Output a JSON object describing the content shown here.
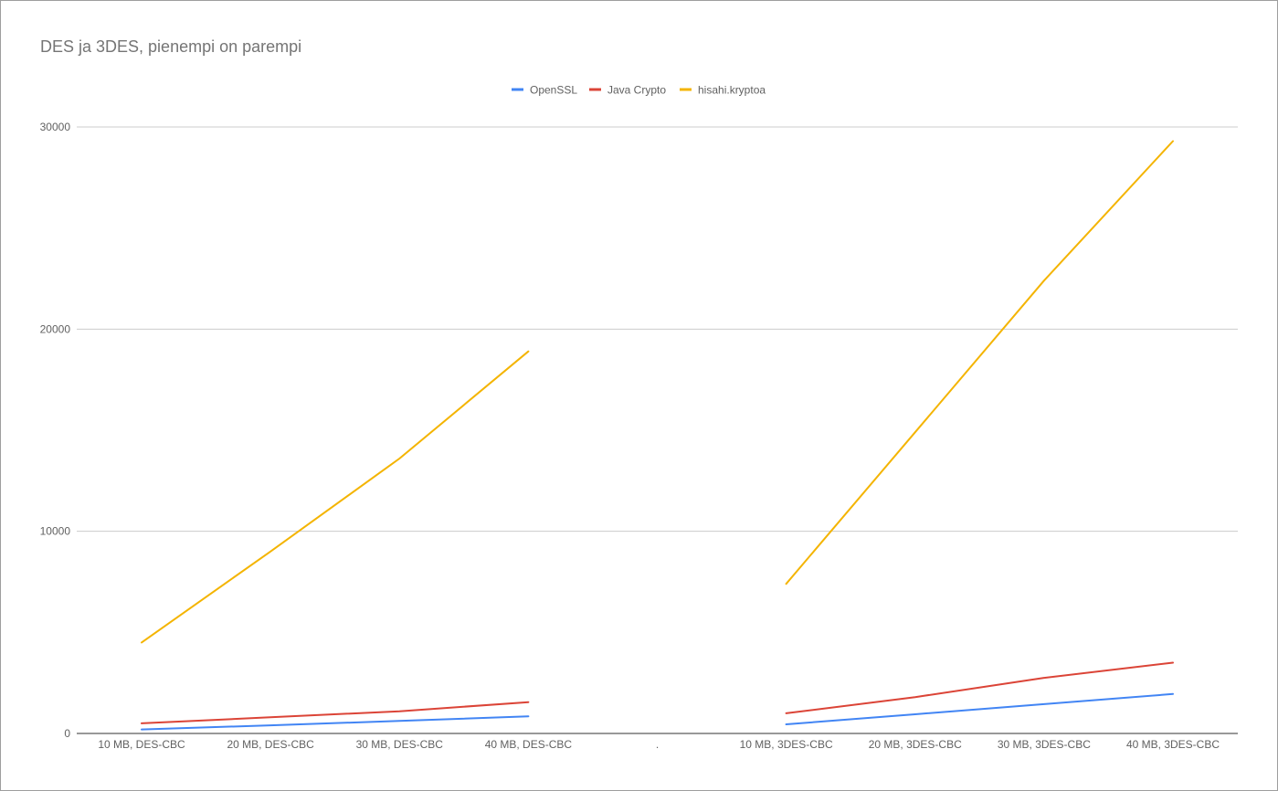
{
  "chart_data": {
    "type": "line",
    "title": "DES ja 3DES, pienempi on parempi",
    "xlabel": "",
    "ylabel": "",
    "categories": [
      "10 MB, DES-CBC",
      "20 MB, DES-CBC",
      "30 MB, DES-CBC",
      "40 MB, DES-CBC",
      ".",
      "10 MB, 3DES-CBC",
      "20 MB, 3DES-CBC",
      "30 MB, 3DES-CBC",
      "40 MB, 3DES-CBC"
    ],
    "ylim": [
      0,
      30000
    ],
    "yticks": [
      "0",
      "10000",
      "20000",
      "30000"
    ],
    "grid": true,
    "legend_position": "top",
    "series": [
      {
        "name": "OpenSSL",
        "color": "#4285f4",
        "values": [
          200,
          400,
          620,
          850,
          null,
          450,
          950,
          1450,
          1950
        ]
      },
      {
        "name": "Java Crypto",
        "color": "#db4437",
        "values": [
          500,
          800,
          1100,
          1550,
          null,
          1000,
          1800,
          2750,
          3500
        ]
      },
      {
        "name": "hisahi.kryptoa",
        "color": "#f4b400",
        "values": [
          4500,
          9000,
          13600,
          18900,
          null,
          7400,
          14900,
          22400,
          29300
        ]
      }
    ]
  }
}
